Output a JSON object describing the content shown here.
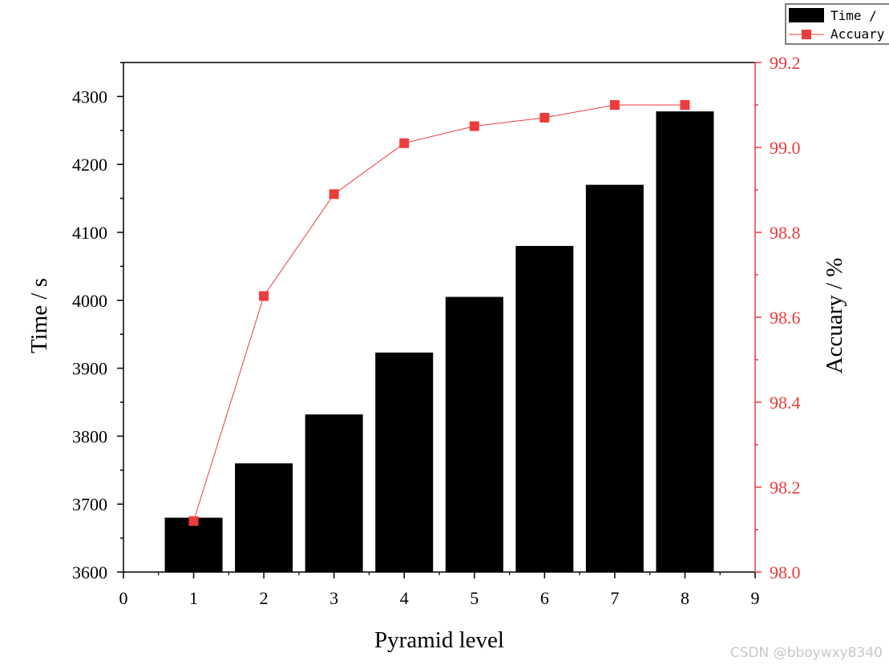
{
  "chart_data": {
    "type": "bar",
    "x": [
      1,
      2,
      3,
      4,
      5,
      6,
      7,
      8
    ],
    "xlabel": "Pyramid level",
    "xlim": [
      0,
      9
    ],
    "x_ticks": [
      "0",
      "1",
      "2",
      "3",
      "4",
      "5",
      "6",
      "7",
      "8",
      "9"
    ],
    "ylabel": "Time / s",
    "ylim": [
      3600,
      4350
    ],
    "y_ticks": [
      "3600",
      "3700",
      "3800",
      "3900",
      "4000",
      "4100",
      "4200",
      "4300"
    ],
    "y2label": "Accuary / %",
    "y2lim": [
      98.0,
      99.2
    ],
    "y2_ticks": [
      "98.0",
      "98.2",
      "98.4",
      "98.6",
      "98.8",
      "99.0",
      "99.2"
    ],
    "series": [
      {
        "name": "Time /",
        "type": "bar",
        "axis": "left",
        "color": "#000000",
        "values": [
          3680,
          3760,
          3832,
          3923,
          4005,
          4080,
          4170,
          4278
        ]
      },
      {
        "name": "Accuary",
        "type": "line",
        "axis": "right",
        "color": "#ee3b3b",
        "values": [
          98.12,
          98.65,
          98.89,
          99.01,
          99.05,
          99.07,
          99.1,
          99.1
        ]
      }
    ],
    "legend": {
      "position": "top-right"
    },
    "right_axis_color": "#ee3b3b",
    "grid": false
  },
  "watermark": "CSDN @bboywxy8340"
}
